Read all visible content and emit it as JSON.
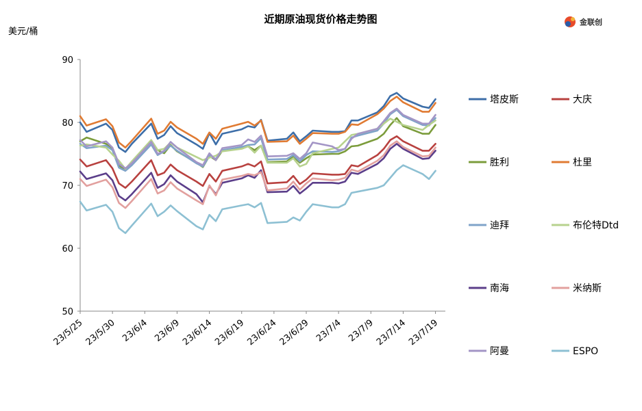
{
  "chart_data": {
    "type": "line",
    "title": "近期原油现货价格走势图",
    "ylabel": "美元/桶",
    "ylim": [
      50,
      90
    ],
    "yticks": [
      50,
      60,
      70,
      80,
      90
    ],
    "grid": false,
    "legend_placement": "right",
    "x_tick_labels": [
      "23/5/25",
      "23/5/30",
      "23/6/4",
      "23/6/9",
      "23/6/14",
      "23/6/19",
      "23/6/24",
      "23/6/29",
      "23/7/4",
      "23/7/9",
      "23/7/14",
      "23/7/19"
    ],
    "x_tick_days": [
      0,
      5,
      10,
      15,
      20,
      25,
      30,
      35,
      40,
      45,
      50,
      55
    ],
    "x_days": [
      0,
      1,
      4,
      5,
      6,
      7,
      8,
      11,
      12,
      13,
      14,
      15,
      18,
      19,
      20,
      21,
      22,
      25,
      26,
      27,
      28,
      29,
      32,
      33,
      34,
      35,
      36,
      39,
      40,
      41,
      42,
      43,
      46,
      47,
      48,
      49,
      50,
      53,
      54,
      55
    ],
    "series": [
      {
        "name": "塔皮斯",
        "color": "#3d6ea8",
        "values": [
          80.0,
          78.5,
          79.8,
          78.8,
          76.0,
          75.3,
          76.6,
          79.8,
          77.4,
          78.0,
          79.4,
          78.3,
          76.5,
          75.8,
          78.3,
          76.5,
          78.2,
          78.9,
          79.4,
          79.2,
          80.4,
          77.1,
          77.4,
          78.4,
          77.0,
          77.8,
          78.7,
          78.5,
          78.5,
          78.6,
          80.3,
          80.3,
          81.6,
          82.6,
          84.2,
          84.7,
          83.8,
          82.5,
          82.3,
          83.7
        ]
      },
      {
        "name": "大庆",
        "color": "#b8413f",
        "values": [
          74.1,
          73.0,
          74.0,
          72.7,
          70.3,
          69.6,
          70.6,
          74.0,
          71.6,
          72.0,
          73.3,
          72.4,
          70.6,
          69.9,
          71.8,
          70.6,
          72.3,
          73.0,
          73.4,
          73.0,
          73.8,
          70.3,
          70.5,
          71.5,
          70.2,
          70.9,
          71.9,
          71.7,
          71.7,
          71.8,
          73.2,
          73.0,
          74.8,
          75.8,
          77.2,
          77.8,
          77.0,
          75.5,
          75.5,
          76.6
        ]
      },
      {
        "name": "胜利",
        "color": "#7b9c3b",
        "values": [
          77.0,
          77.6,
          76.6,
          75.8,
          73.1,
          72.6,
          73.6,
          77.0,
          75.6,
          75.1,
          76.4,
          75.4,
          73.6,
          72.9,
          74.7,
          74.0,
          75.5,
          76.1,
          76.2,
          75.6,
          76.3,
          73.7,
          73.8,
          74.6,
          73.6,
          74.3,
          74.9,
          75.0,
          75.0,
          75.4,
          76.2,
          76.3,
          77.4,
          78.2,
          79.6,
          80.7,
          79.4,
          78.2,
          78.2,
          79.6
        ]
      },
      {
        "name": "杜里",
        "color": "#e07b33",
        "values": [
          81.0,
          79.5,
          80.5,
          79.4,
          76.8,
          76.0,
          77.1,
          80.6,
          78.2,
          78.7,
          80.1,
          79.2,
          77.4,
          76.6,
          78.4,
          77.4,
          79.0,
          79.8,
          80.1,
          79.5,
          80.3,
          76.9,
          77.0,
          77.9,
          76.6,
          77.4,
          78.3,
          78.2,
          78.2,
          78.5,
          79.7,
          79.6,
          81.3,
          82.2,
          83.4,
          84.1,
          83.2,
          81.7,
          81.7,
          83.1
        ]
      },
      {
        "name": "迪拜",
        "color": "#7fa3c9",
        "values": [
          76.6,
          75.9,
          76.3,
          75.6,
          72.8,
          72.3,
          73.2,
          76.5,
          74.8,
          75.4,
          76.3,
          75.5,
          73.5,
          73.0,
          74.7,
          74.2,
          75.6,
          76.1,
          76.4,
          76.5,
          77.5,
          74.1,
          74.2,
          74.8,
          73.8,
          74.8,
          75.4,
          75.3,
          75.4,
          75.8,
          77.6,
          77.9,
          78.7,
          79.8,
          81.3,
          82.0,
          81.0,
          79.6,
          79.5,
          80.7
        ]
      },
      {
        "name": "布伦特Dtd",
        "color": "#b7d28e",
        "values": [
          76.3,
          76.5,
          76.0,
          74.9,
          73.9,
          72.6,
          73.8,
          77.2,
          75.6,
          75.8,
          76.8,
          76.0,
          74.5,
          74.0,
          74.4,
          74.7,
          75.4,
          75.8,
          76.2,
          75.2,
          76.3,
          73.6,
          73.6,
          74.3,
          73.0,
          73.4,
          75.1,
          75.8,
          76.0,
          77.0,
          78.0,
          78.2,
          79.0,
          79.8,
          80.6,
          80.1,
          79.6,
          78.8,
          79.6,
          80.3
        ]
      },
      {
        "name": "南海",
        "color": "#5b3e8a",
        "values": [
          72.2,
          71.0,
          71.9,
          70.8,
          68.3,
          67.6,
          68.6,
          72.0,
          69.6,
          70.2,
          71.6,
          70.6,
          68.6,
          67.3,
          69.9,
          68.6,
          70.4,
          71.1,
          71.6,
          71.2,
          72.4,
          68.9,
          69.0,
          69.9,
          68.7,
          69.5,
          70.4,
          70.4,
          70.3,
          70.6,
          72.0,
          71.8,
          73.4,
          74.3,
          75.8,
          76.6,
          75.8,
          74.2,
          74.3,
          75.5
        ]
      },
      {
        "name": "米纳斯",
        "color": "#e2a09e",
        "values": [
          71.0,
          69.9,
          70.9,
          69.7,
          67.2,
          66.4,
          67.5,
          71.0,
          68.7,
          69.2,
          70.5,
          69.5,
          67.6,
          67.0,
          70.0,
          68.4,
          70.9,
          71.5,
          71.8,
          71.6,
          72.1,
          69.2,
          69.5,
          70.6,
          69.3,
          70.3,
          71.1,
          70.8,
          70.9,
          71.2,
          72.5,
          72.2,
          73.9,
          74.8,
          76.3,
          77.0,
          76.1,
          74.6,
          74.7,
          76.0
        ]
      },
      {
        "name": "阿曼",
        "color": "#a395c6",
        "values": [
          77.2,
          76.2,
          77.0,
          76.0,
          73.4,
          72.7,
          73.5,
          76.9,
          75.0,
          75.5,
          76.9,
          76.0,
          73.7,
          73.2,
          75.1,
          74.0,
          75.9,
          76.4,
          77.3,
          76.9,
          77.9,
          74.6,
          74.7,
          75.1,
          74.2,
          75.1,
          76.8,
          76.2,
          75.6,
          75.8,
          77.4,
          78.2,
          79.0,
          80.2,
          81.5,
          82.2,
          81.2,
          79.8,
          79.8,
          81.2
        ]
      },
      {
        "name": "ESPO",
        "color": "#8dc0d3",
        "values": [
          67.4,
          66.0,
          66.9,
          65.8,
          63.2,
          62.4,
          63.6,
          67.1,
          65.1,
          65.8,
          66.8,
          65.9,
          63.5,
          63.0,
          65.3,
          64.3,
          66.2,
          66.8,
          67.0,
          66.5,
          67.2,
          64.0,
          64.2,
          64.9,
          64.4,
          65.8,
          67.0,
          66.5,
          66.5,
          67.0,
          68.8,
          69.0,
          69.6,
          70.0,
          71.2,
          72.4,
          73.2,
          71.8,
          71.0,
          72.3
        ]
      }
    ]
  },
  "logo": {
    "brand": "金联创"
  }
}
